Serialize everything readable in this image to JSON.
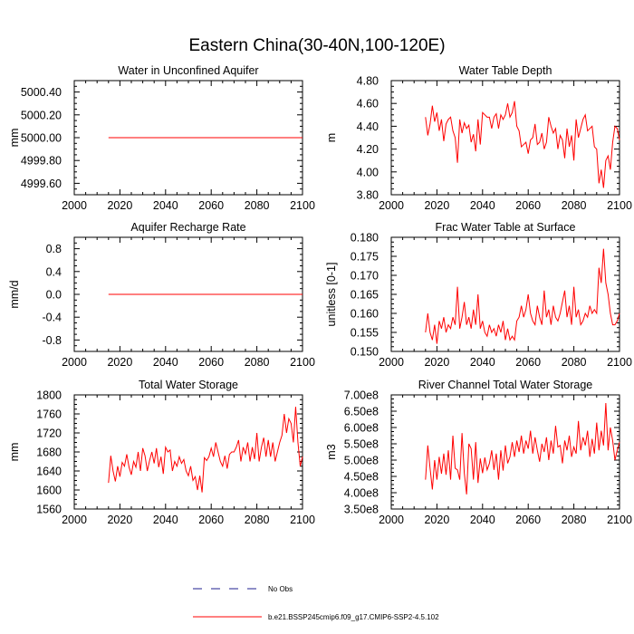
{
  "figure": {
    "title": "Eastern China(30-40N,100-120E)",
    "series_color": "#ff0000",
    "legend": {
      "entries": [
        {
          "label": "No Obs",
          "style": "dashed",
          "color": "#1f1f8f"
        },
        {
          "label": "b.e21.BSSP245cmip6.f09_g17.CMIP6-SSP2-4.5.102",
          "style": "solid",
          "color": "#ff0000"
        }
      ]
    }
  },
  "chart_data": [
    {
      "type": "line",
      "title": "Water in Unconfined Aquifer",
      "ylabel": "mm",
      "xlabel": "",
      "xlim": [
        2000,
        2100
      ],
      "ylim": [
        4999.5,
        5000.5
      ],
      "xticks": [
        2000,
        2020,
        2040,
        2060,
        2080,
        2100
      ],
      "xtick_labels": [
        "2000",
        "2020",
        "2040",
        "2060",
        "2080",
        "2100"
      ],
      "yticks": [
        4999.6,
        4999.8,
        5000.0,
        5000.2,
        5000.4
      ],
      "ytick_labels": [
        "4999.60",
        "4999.80",
        "5000.00",
        "5000.20",
        "5000.40"
      ],
      "series": [
        {
          "name": "b.e21.BSSP245cmip6.f09_g17.CMIP6-SSP2-4.5.102",
          "x_start": 2015,
          "x_end": 2100,
          "values": [
            5000,
            5000,
            5000,
            5000,
            5000,
            5000,
            5000,
            5000,
            5000,
            5000,
            5000,
            5000,
            5000,
            5000,
            5000,
            5000,
            5000,
            5000,
            5000,
            5000,
            5000,
            5000,
            5000,
            5000,
            5000,
            5000,
            5000,
            5000,
            5000,
            5000,
            5000,
            5000,
            5000,
            5000,
            5000,
            5000,
            5000,
            5000,
            5000,
            5000,
            5000,
            5000,
            5000,
            5000,
            5000,
            5000,
            5000,
            5000,
            5000,
            5000,
            5000,
            5000,
            5000,
            5000,
            5000,
            5000,
            5000,
            5000,
            5000,
            5000,
            5000,
            5000,
            5000,
            5000,
            5000,
            5000,
            5000,
            5000,
            5000,
            5000,
            5000,
            5000,
            5000,
            5000,
            5000,
            5000,
            5000,
            5000,
            5000,
            5000,
            5000,
            5000,
            5000,
            5000,
            5000,
            5000
          ]
        }
      ]
    },
    {
      "type": "line",
      "title": "Water Table Depth",
      "ylabel": "m",
      "xlabel": "",
      "xlim": [
        2000,
        2100
      ],
      "ylim": [
        3.8,
        4.8
      ],
      "xticks": [
        2000,
        2020,
        2040,
        2060,
        2080,
        2100
      ],
      "xtick_labels": [
        "2000",
        "2020",
        "2040",
        "2060",
        "2080",
        "2100"
      ],
      "yticks": [
        3.8,
        4.0,
        4.2,
        4.4,
        4.6,
        4.8
      ],
      "ytick_labels": [
        "3.80",
        "4.00",
        "4.20",
        "4.40",
        "4.60",
        "4.80"
      ],
      "series": [
        {
          "name": "b.e21.BSSP245cmip6.f09_g17.CMIP6-SSP2-4.5.102",
          "x_start": 2015,
          "x_end": 2100,
          "values": [
            4.48,
            4.32,
            4.42,
            4.58,
            4.44,
            4.52,
            4.36,
            4.46,
            4.27,
            4.42,
            4.46,
            4.48,
            4.36,
            4.3,
            4.08,
            4.46,
            4.34,
            4.43,
            4.38,
            4.41,
            4.26,
            4.33,
            4.18,
            4.46,
            4.24,
            4.52,
            4.5,
            4.48,
            4.48,
            4.38,
            4.48,
            4.51,
            4.38,
            4.5,
            4.46,
            4.5,
            4.6,
            4.48,
            4.52,
            4.62,
            4.4,
            4.36,
            4.22,
            4.24,
            4.26,
            4.16,
            4.28,
            4.3,
            4.42,
            4.24,
            4.26,
            4.34,
            4.2,
            4.26,
            4.48,
            4.4,
            4.34,
            4.38,
            4.2,
            4.32,
            4.28,
            4.12,
            4.38,
            4.22,
            4.32,
            4.1,
            4.46,
            4.3,
            4.38,
            4.46,
            4.5,
            4.36,
            4.38,
            4.4,
            4.22,
            4.2,
            3.9,
            4.02,
            3.86,
            4.1,
            4.14,
            4.02,
            4.26,
            4.4,
            4.38,
            4.28
          ]
        }
      ]
    },
    {
      "type": "line",
      "title": "Aquifer Recharge Rate",
      "ylabel": "mm/d",
      "xlabel": "",
      "xlim": [
        2000,
        2100
      ],
      "ylim": [
        -1.0,
        1.0
      ],
      "xticks": [
        2000,
        2020,
        2040,
        2060,
        2080,
        2100
      ],
      "xtick_labels": [
        "2000",
        "2020",
        "2040",
        "2060",
        "2080",
        "2100"
      ],
      "yticks": [
        -0.8,
        -0.4,
        0.0,
        0.4,
        0.8
      ],
      "ytick_labels": [
        "-0.8",
        "-0.4",
        "0.0",
        "0.4",
        "0.8"
      ],
      "series": [
        {
          "name": "b.e21.BSSP245cmip6.f09_g17.CMIP6-SSP2-4.5.102",
          "x_start": 2015,
          "x_end": 2100,
          "values": [
            0,
            0,
            0,
            0,
            0,
            0,
            0,
            0,
            0,
            0,
            0,
            0,
            0,
            0,
            0,
            0,
            0,
            0,
            0,
            0,
            0,
            0,
            0,
            0,
            0,
            0,
            0,
            0,
            0,
            0,
            0,
            0,
            0,
            0,
            0,
            0,
            0,
            0,
            0,
            0,
            0,
            0,
            0,
            0,
            0,
            0,
            0,
            0,
            0,
            0,
            0,
            0,
            0,
            0,
            0,
            0,
            0,
            0,
            0,
            0,
            0,
            0,
            0,
            0,
            0,
            0,
            0,
            0,
            0,
            0,
            0,
            0,
            0,
            0,
            0,
            0,
            0,
            0,
            0,
            0,
            0,
            0,
            0,
            0,
            0,
            0
          ]
        }
      ]
    },
    {
      "type": "line",
      "title": "Frac Water Table at Surface",
      "ylabel": "unitless [0-1]",
      "xlabel": "",
      "xlim": [
        2000,
        2100
      ],
      "ylim": [
        0.15,
        0.18
      ],
      "xticks": [
        2000,
        2020,
        2040,
        2060,
        2080,
        2100
      ],
      "xtick_labels": [
        "2000",
        "2020",
        "2040",
        "2060",
        "2080",
        "2100"
      ],
      "yticks": [
        0.15,
        0.155,
        0.16,
        0.165,
        0.17,
        0.175,
        0.18
      ],
      "ytick_labels": [
        "0.150",
        "0.155",
        "0.160",
        "0.165",
        "0.170",
        "0.175",
        "0.180"
      ],
      "series": [
        {
          "name": "b.e21.BSSP245cmip6.f09_g17.CMIP6-SSP2-4.5.102",
          "x_start": 2015,
          "x_end": 2100,
          "values": [
            0.155,
            0.16,
            0.155,
            0.153,
            0.157,
            0.152,
            0.158,
            0.156,
            0.159,
            0.155,
            0.157,
            0.156,
            0.159,
            0.157,
            0.167,
            0.156,
            0.159,
            0.163,
            0.157,
            0.159,
            0.156,
            0.161,
            0.157,
            0.165,
            0.156,
            0.158,
            0.155,
            0.154,
            0.157,
            0.155,
            0.156,
            0.154,
            0.157,
            0.155,
            0.158,
            0.153,
            0.156,
            0.153,
            0.154,
            0.153,
            0.158,
            0.159,
            0.162,
            0.159,
            0.161,
            0.165,
            0.16,
            0.158,
            0.157,
            0.162,
            0.159,
            0.157,
            0.166,
            0.159,
            0.161,
            0.157,
            0.162,
            0.159,
            0.158,
            0.16,
            0.163,
            0.166,
            0.159,
            0.162,
            0.157,
            0.167,
            0.159,
            0.161,
            0.157,
            0.158,
            0.16,
            0.159,
            0.162,
            0.16,
            0.161,
            0.16,
            0.172,
            0.168,
            0.177,
            0.168,
            0.165,
            0.16,
            0.157,
            0.157,
            0.158,
            0.16
          ]
        }
      ]
    },
    {
      "type": "line",
      "title": "Total Water Storage",
      "ylabel": "mm",
      "xlabel": "",
      "xlim": [
        2000,
        2100
      ],
      "ylim": [
        1560,
        1800
      ],
      "xticks": [
        2000,
        2020,
        2040,
        2060,
        2080,
        2100
      ],
      "xtick_labels": [
        "2000",
        "2020",
        "2040",
        "2060",
        "2080",
        "2100"
      ],
      "yticks": [
        1560,
        1600,
        1640,
        1680,
        1720,
        1760,
        1800
      ],
      "ytick_labels": [
        "1560",
        "1600",
        "1640",
        "1680",
        "1720",
        "1760",
        "1800"
      ],
      "series": [
        {
          "name": "b.e21.BSSP245cmip6.f09_g17.CMIP6-SSP2-4.5.102",
          "x_start": 2015,
          "x_end": 2100,
          "values": [
            1615,
            1672,
            1640,
            1618,
            1650,
            1628,
            1658,
            1650,
            1675,
            1648,
            1632,
            1660,
            1648,
            1680,
            1640,
            1688,
            1672,
            1640,
            1662,
            1680,
            1656,
            1688,
            1648,
            1670,
            1634,
            1690,
            1680,
            1684,
            1640,
            1660,
            1650,
            1670,
            1656,
            1664,
            1640,
            1630,
            1650,
            1620,
            1628,
            1600,
            1630,
            1595,
            1668,
            1662,
            1670,
            1688,
            1670,
            1700,
            1680,
            1660,
            1650,
            1672,
            1645,
            1675,
            1680,
            1680,
            1690,
            1705,
            1660,
            1690,
            1676,
            1700,
            1660,
            1690,
            1665,
            1720,
            1660,
            1690,
            1710,
            1670,
            1705,
            1670,
            1700,
            1660,
            1680,
            1700,
            1715,
            1760,
            1720,
            1750,
            1740,
            1700,
            1775,
            1700,
            1650,
            1670
          ]
        }
      ]
    },
    {
      "type": "line",
      "title": "River Channel Total Water Storage",
      "ylabel": "m3",
      "xlabel": "",
      "xlim": [
        2000,
        2100
      ],
      "ylim": [
        350000000,
        700000000
      ],
      "xticks": [
        2000,
        2020,
        2040,
        2060,
        2080,
        2100
      ],
      "xtick_labels": [
        "2000",
        "2020",
        "2040",
        "2060",
        "2080",
        "2100"
      ],
      "yticks": [
        350000000,
        400000000,
        450000000,
        500000000,
        550000000,
        600000000,
        650000000,
        700000000
      ],
      "ytick_labels": [
        "3.50e8",
        "4.00e8",
        "4.50e8",
        "5.00e8",
        "5.50e8",
        "6.00e8",
        "6.50e8",
        "7.00e8"
      ],
      "series": [
        {
          "name": "b.e21.BSSP245cmip6.f09_g17.CMIP6-SSP2-4.5.102",
          "x_start": 2015,
          "x_end": 2100,
          "values": [
            440000000,
            545000000,
            475000000,
            410000000,
            500000000,
            440000000,
            510000000,
            458000000,
            520000000,
            455000000,
            530000000,
            440000000,
            575000000,
            475000000,
            470000000,
            440000000,
            583000000,
            460000000,
            395000000,
            550000000,
            535000000,
            440000000,
            555000000,
            430000000,
            505000000,
            460000000,
            508000000,
            470000000,
            490000000,
            530000000,
            470000000,
            520000000,
            440000000,
            530000000,
            468000000,
            545000000,
            490000000,
            510000000,
            555000000,
            510000000,
            560000000,
            525000000,
            575000000,
            520000000,
            560000000,
            535000000,
            590000000,
            520000000,
            570000000,
            530000000,
            495000000,
            550000000,
            525000000,
            570000000,
            500000000,
            560000000,
            520000000,
            605000000,
            540000000,
            545000000,
            490000000,
            560000000,
            530000000,
            575000000,
            510000000,
            540000000,
            520000000,
            620000000,
            530000000,
            570000000,
            545000000,
            590000000,
            510000000,
            565000000,
            520000000,
            615000000,
            530000000,
            590000000,
            545000000,
            675000000,
            530000000,
            600000000,
            560000000,
            500000000,
            530000000,
            555000000
          ]
        }
      ]
    }
  ]
}
